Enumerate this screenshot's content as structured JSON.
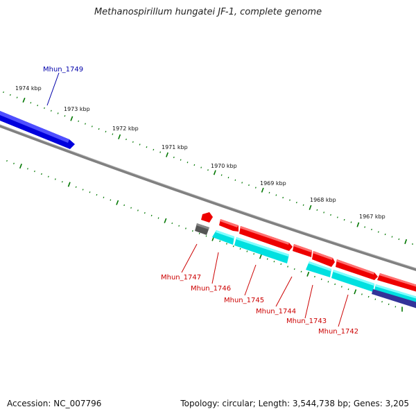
{
  "title": "Methanospirillum hungatei JF-1, complete genome",
  "accession": "Accession: NC_007796",
  "summary": "Topology: circular; Length: 3,544,738 bp; Genes: 3,205",
  "colors": {
    "forward_gene": "#ff0000",
    "reverse_gene": "#00e0e0",
    "highlight_gene": "#0000cc",
    "other_gene": "#555555",
    "rna_gene": "#333399",
    "backbone": "#808080",
    "ticks": "#007700",
    "label_red": "#cc0000",
    "label_blue": "#0000aa"
  },
  "scale_labels": [
    "1974 kbp",
    "1973 kbp",
    "1972 kbp",
    "1971 kbp",
    "1970 kbp",
    "1969 kbp",
    "1968 kbp",
    "1967 kbp"
  ],
  "gene_labels": {
    "highlight": "Mhun_1749",
    "g1747": "Mhun_1747",
    "g1746": "Mhun_1746",
    "g1745": "Mhun_1745",
    "g1744": "Mhun_1744",
    "g1743": "Mhun_1743",
    "g1742": "Mhun_1742"
  }
}
